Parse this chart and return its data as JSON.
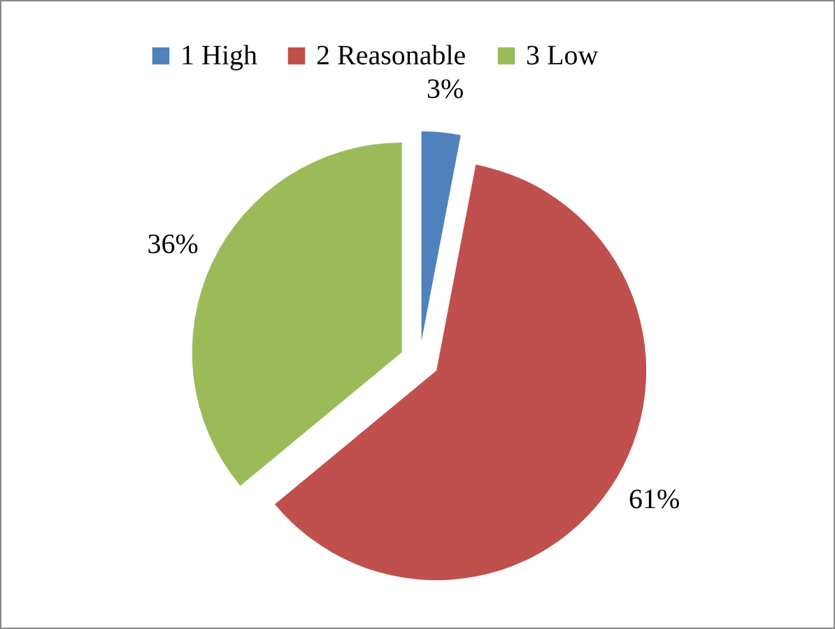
{
  "chart_data": {
    "type": "pie",
    "categories": [
      "1 High",
      "2 Reasonable",
      "3 Low"
    ],
    "values": [
      3,
      61,
      36
    ],
    "colors": [
      "#4f81bd",
      "#c0504d",
      "#9bbb59"
    ],
    "value_labels": [
      "3%",
      "61%",
      "36%"
    ],
    "legend": "top"
  }
}
